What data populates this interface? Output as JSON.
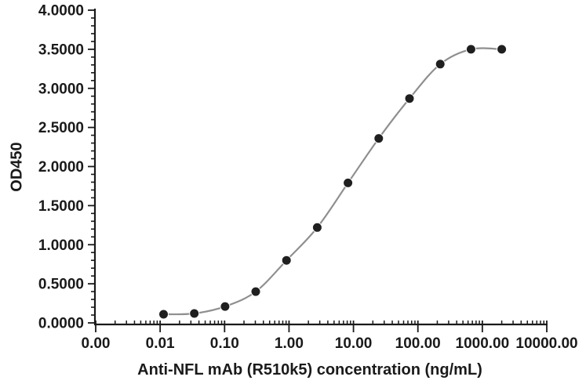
{
  "chart_data": {
    "type": "line",
    "title": "",
    "xlabel": "Anti-NFL mAb (R510k5) concentration (ng/mL)",
    "ylabel": "OD450",
    "x_scale": "log",
    "x_range": [
      0.001,
      10000
    ],
    "y_range": [
      0,
      4
    ],
    "x": [
      0.0113,
      0.0339,
      0.1016,
      0.3048,
      0.9145,
      2.7435,
      8.2305,
      24.6914,
      74.0741,
      222.2222,
      666.6667,
      2000
    ],
    "y": [
      0.11,
      0.12,
      0.21,
      0.4,
      0.8,
      1.22,
      1.79,
      2.36,
      2.87,
      3.31,
      3.5,
      3.5
    ],
    "x_ticks": {
      "values": [
        0.001,
        0.01,
        0.1,
        1,
        10,
        100,
        1000,
        10000
      ],
      "labels": [
        "0.00",
        "0.01",
        "0.10",
        "1.00",
        "10.00",
        "100.00",
        "1000.00",
        "10000.00"
      ]
    },
    "y_ticks": {
      "values": [
        0,
        0.5,
        1,
        1.5,
        2,
        2.5,
        3,
        3.5,
        4
      ],
      "labels": [
        "0.0000",
        "0.5000",
        "1.0000",
        "1.5000",
        "2.0000",
        "2.5000",
        "3.0000",
        "3.5000",
        "4.0000"
      ]
    },
    "y_minor_step": 0.1,
    "x_minor": "log-sub-decades",
    "grid": "off",
    "legend": "none",
    "marker": "circle",
    "marker_size_px": 12,
    "line_smooth": true,
    "colors": {
      "marker": "#1f1f1f",
      "marker_edge": "#ffffff",
      "line": "#8f8f8f",
      "axis": "#1a1a1a",
      "text": "#1a1a1a",
      "background": "#ffffff"
    }
  }
}
